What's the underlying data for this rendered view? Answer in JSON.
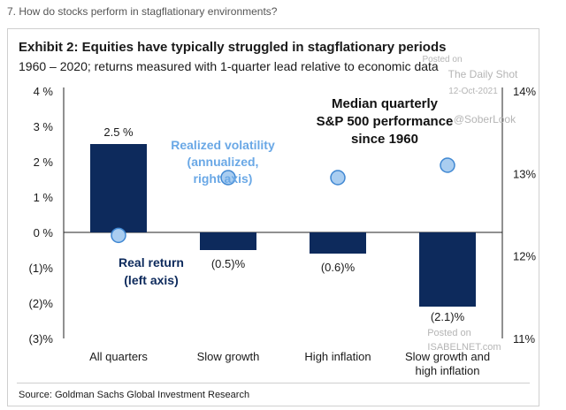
{
  "question": "7. How do stocks perform in stagflationary environments?",
  "title": "Exhibit 2: Equities have typically struggled in stagflationary periods",
  "subtitle": "1960 – 2020; returns measured with 1-quarter lead relative to economic data",
  "source": "Source: Goldman Sachs Global Investment Research",
  "colors": {
    "bar": "#0d2a5c",
    "dot_fill": "#a9cdf0",
    "dot_stroke": "#3f87d2",
    "annotation_blue": "#6aa8e6"
  },
  "annotations": {
    "median": [
      "Median quarterly",
      "S&P 500 performance",
      "since 1960"
    ],
    "volatility": [
      "Realized volatility",
      "(annualized,",
      "right axis)"
    ],
    "real_return": [
      "Real return",
      "(left axis)"
    ]
  },
  "watermarks": {
    "dailyshot_posted": "Posted on",
    "dailyshot_name": "The Daily Shot",
    "dailyshot_date": "12-Oct-2021",
    "dailyshot_handle": "@SoberLook",
    "isabelnet_posted": "Posted on",
    "isabelnet_name": "ISABELNET.com"
  },
  "chart_data": {
    "type": "bar",
    "categories": [
      [
        "All quarters"
      ],
      [
        "Slow growth"
      ],
      [
        "High inflation"
      ],
      [
        "Slow growth and",
        "high inflation"
      ]
    ],
    "series": [
      {
        "name": "Real return (left axis)",
        "axis": "left",
        "values": [
          2.5,
          -0.5,
          -0.6,
          -2.1
        ],
        "labels": [
          "2.5 %",
          "(0.5)%",
          "(0.6)%",
          "(2.1)%"
        ]
      },
      {
        "name": "Realized volatility (annualized, right axis)",
        "axis": "right",
        "values": [
          12.25,
          12.95,
          12.95,
          13.1
        ]
      }
    ],
    "left_axis": {
      "ylim": [
        -3,
        4
      ],
      "ticks": [
        4,
        3,
        2,
        1,
        0,
        -1,
        -2,
        -3
      ],
      "tick_labels": [
        "4 %",
        "3 %",
        "2 %",
        "1 %",
        "0 %",
        "(1)%",
        "(2)%",
        "(3)%"
      ]
    },
    "right_axis": {
      "ylim": [
        11,
        14
      ],
      "ticks": [
        14,
        13,
        12,
        11
      ],
      "tick_labels": [
        "14%",
        "13%",
        "12%",
        "11%"
      ]
    },
    "grid": false,
    "legend": "annotations"
  }
}
